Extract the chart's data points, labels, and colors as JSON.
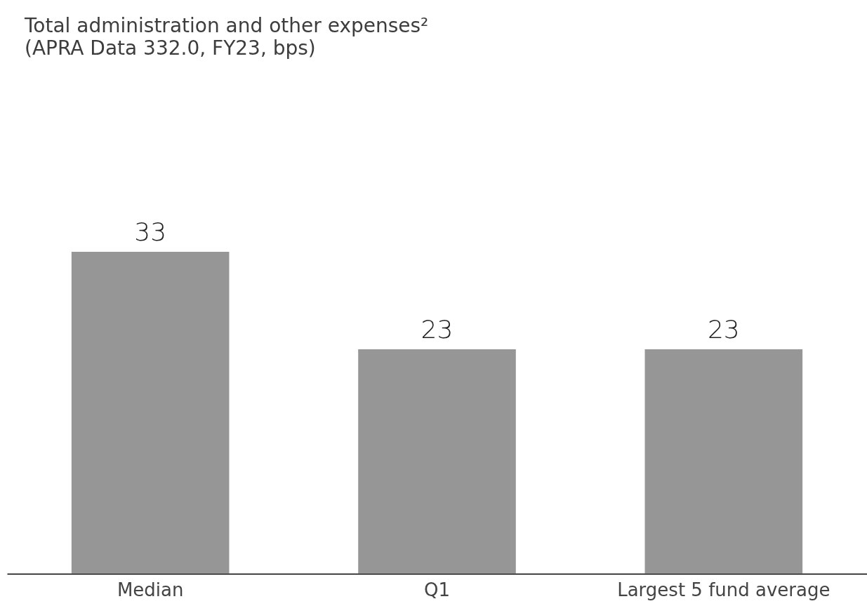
{
  "chart_data": {
    "type": "bar",
    "title": "Total administration and other expenses²",
    "subtitle": "(APRA Data 332.0, FY23, bps)",
    "categories": [
      "Median",
      "Q1",
      "Largest 5 fund average"
    ],
    "values": [
      33,
      23,
      23
    ],
    "color": "#969696",
    "data_labels": true
  }
}
